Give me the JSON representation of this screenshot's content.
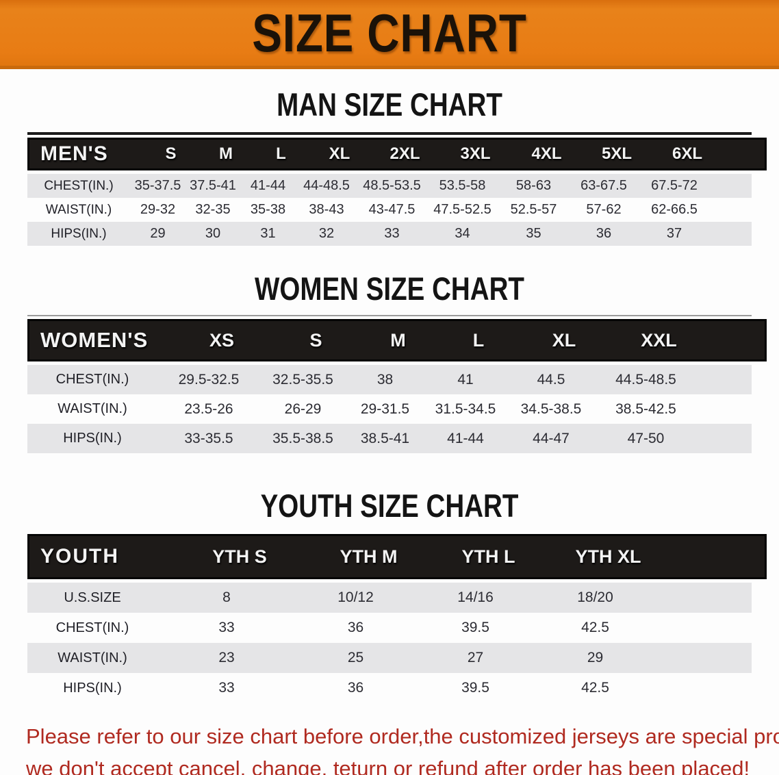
{
  "banner": {
    "title": "SIZE CHART"
  },
  "sections": [
    {
      "heading": "MAN SIZE CHART",
      "table": {
        "label": "MEN'S",
        "sizes": [
          "S",
          "M",
          "L",
          "XL",
          "2XL",
          "3XL",
          "4XL",
          "5XL",
          "6XL"
        ],
        "rows": [
          {
            "label": "CHEST(IN.)",
            "values": [
              "35-37.5",
              "37.5-41",
              "41-44",
              "44-48.5",
              "48.5-53.5",
              "53.5-58",
              "58-63",
              "63-67.5",
              "67.5-72"
            ]
          },
          {
            "label": "WAIST(IN.)",
            "values": [
              "29-32",
              "32-35",
              "35-38",
              "38-43",
              "43-47.5",
              "47.5-52.5",
              "52.5-57",
              "57-62",
              "62-66.5"
            ]
          },
          {
            "label": "HIPS(IN.)",
            "values": [
              "29",
              "30",
              "31",
              "32",
              "33",
              "34",
              "35",
              "36",
              "37"
            ]
          }
        ]
      }
    },
    {
      "heading": "WOMEN SIZE CHART",
      "table": {
        "label": "WOMEN'S",
        "sizes": [
          "XS",
          "S",
          "M",
          "L",
          "XL",
          "XXL"
        ],
        "rows": [
          {
            "label": "CHEST(IN.)",
            "values": [
              "29.5-32.5",
              "32.5-35.5",
              "38",
              "41",
              "44.5",
              "44.5-48.5"
            ]
          },
          {
            "label": "WAIST(IN.)",
            "values": [
              "23.5-26",
              "26-29",
              "29-31.5",
              "31.5-34.5",
              "34.5-38.5",
              "38.5-42.5"
            ]
          },
          {
            "label": "HIPS(IN.)",
            "values": [
              "33-35.5",
              "35.5-38.5",
              "38.5-41",
              "41-44",
              "44-47",
              "47-50"
            ]
          }
        ]
      }
    },
    {
      "heading": "YOUTH SIZE CHART",
      "table": {
        "label": "YOUTH",
        "sizes": [
          "YTH S",
          "YTH M",
          "YTH L",
          "YTH XL"
        ],
        "rows": [
          {
            "label": "U.S.SIZE",
            "values": [
              "8",
              "10/12",
              "14/16",
              "18/20"
            ]
          },
          {
            "label": "CHEST(IN.)",
            "values": [
              "33",
              "36",
              "39.5",
              "42.5"
            ]
          },
          {
            "label": "WAIST(IN.)",
            "values": [
              "23",
              "25",
              "27",
              "29"
            ]
          },
          {
            "label": "HIPS(IN.)",
            "values": [
              "33",
              "36",
              "39.5",
              "42.5"
            ]
          }
        ]
      }
    }
  ],
  "footer": {
    "line1": "Please refer to our size chart before order,the customized jerseys are special products,",
    "line2": "we don't accept cancel, change, teturn or refund after order has been placed!"
  },
  "colors": {
    "banner_orange": "#E87C14",
    "banner_orange_dark": "#C96A0C",
    "header_black": "#1D1A18",
    "row_gray": "#E5E5E7",
    "value_text": "#2C2C33",
    "notice_red": "#B02A20"
  }
}
